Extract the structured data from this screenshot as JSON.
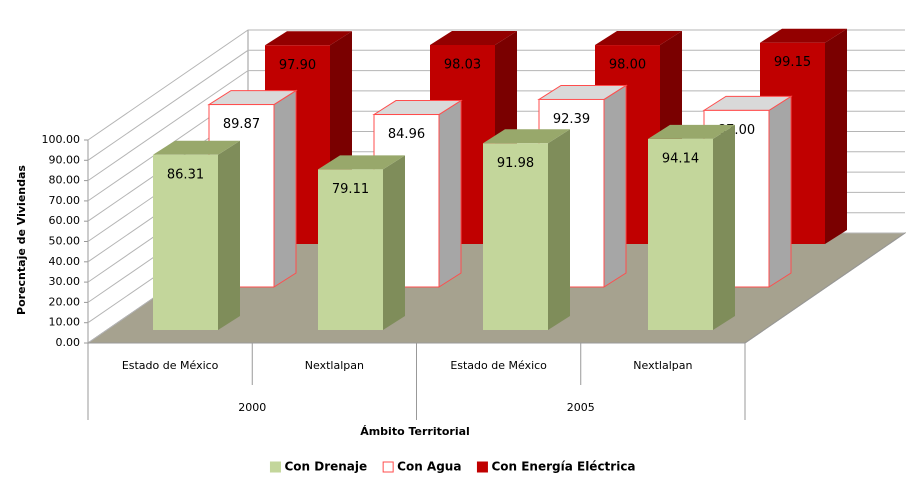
{
  "chart_data": {
    "type": "bar",
    "categories": [
      "Estado de México",
      "Nextlalpan",
      "Estado de México",
      "Nextlalpan"
    ],
    "group_labels": [
      "2000",
      "2005"
    ],
    "x_label": "Ámbito Territorial",
    "y_label": "Porecntaje de Viviendas",
    "ylim": [
      0,
      100
    ],
    "yticks": [
      {
        "value": 0,
        "label": "0.00"
      },
      {
        "value": 10,
        "label": "10.00"
      },
      {
        "value": 20,
        "label": "20.00"
      },
      {
        "value": 30,
        "label": "30.00"
      },
      {
        "value": 40,
        "label": "40.00"
      },
      {
        "value": 50,
        "label": "50.00"
      },
      {
        "value": 60,
        "label": "60.00"
      },
      {
        "value": 70,
        "label": "70.00"
      },
      {
        "value": 80,
        "label": "80.00"
      },
      {
        "value": 90,
        "label": "90.00"
      },
      {
        "value": 100,
        "label": "100.00"
      }
    ],
    "grid": true,
    "legend": "bottom",
    "series": [
      {
        "name": "Con Drenaje",
        "color": "#c3d69b",
        "values": [
          86.31,
          79.11,
          91.98,
          94.14
        ],
        "value_labels": [
          "86.31",
          "79.11",
          "91.98",
          "94.14"
        ]
      },
      {
        "name": "Con Agua",
        "color": "#ffffff",
        "values": [
          89.87,
          84.96,
          92.39,
          87.0
        ],
        "value_labels": [
          "89.87",
          "84.96",
          "92.39",
          "87.00"
        ]
      },
      {
        "name": "Con Energía Eléctrica",
        "color": "#c00000",
        "values": [
          97.9,
          98.03,
          98.0,
          99.15
        ],
        "value_labels": [
          "97.90",
          "98.03",
          "98.00",
          "99.15"
        ]
      }
    ]
  }
}
